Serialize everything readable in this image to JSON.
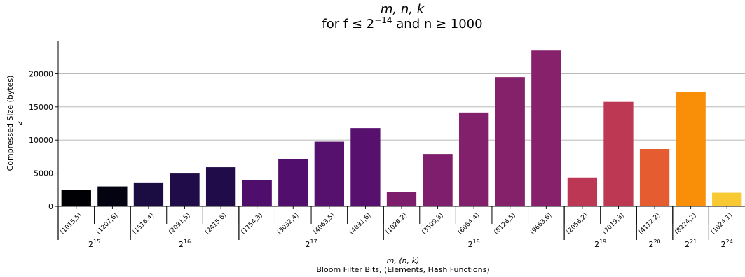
{
  "chart_data": {
    "type": "bar",
    "title_line1": "m, n, k",
    "title_line2_prefix": "for f ≤ 2",
    "title_line2_exp": "−14",
    "title_line2_suffix": " and n ≥ 1000",
    "xlabel_line1": "m, (n, k)",
    "xlabel_line2": "Bloom Filter Bits, (Elements, Hash Functions)",
    "ylabel_line1": "Compressed Size (bytes)",
    "ylabel_line2": "z",
    "ylim": [
      0,
      25000
    ],
    "yticks": [
      "0",
      "5000",
      "10000",
      "15000",
      "20000"
    ],
    "grid": "horizontal",
    "categories": [
      "(1015,5)",
      "(1207,6)",
      "(1516,4)",
      "(2031,5)",
      "(2415,6)",
      "(1754,3)",
      "(3032,4)",
      "(4063,5)",
      "(4831,6)",
      "(1028,2)",
      "(3509,3)",
      "(6064,4)",
      "(8126,5)",
      "(9663,6)",
      "(2056,2)",
      "(7019,3)",
      "(4112,2)",
      "(8224,2)",
      "(1024,1)"
    ],
    "values": [
      2500,
      3000,
      3600,
      4950,
      5900,
      3950,
      7100,
      9750,
      11800,
      2200,
      7900,
      14150,
      19500,
      23500,
      4350,
      15750,
      8650,
      17300,
      2050
    ],
    "colors": [
      "#000004",
      "#040312",
      "#1b0c41",
      "#1f0c48",
      "#210c4a",
      "#4f0d6c",
      "#520e6d",
      "#56106e",
      "#57106e",
      "#7d1e6d",
      "#7f1e6c",
      "#83206b",
      "#85216b",
      "#87216b",
      "#bc3754",
      "#bd3853",
      "#e55c30",
      "#f98e09",
      "#f8c932"
    ],
    "groups": [
      {
        "base": "2",
        "exp": "15",
        "start": 0,
        "end": 1
      },
      {
        "base": "2",
        "exp": "16",
        "start": 2,
        "end": 4
      },
      {
        "base": "2",
        "exp": "17",
        "start": 5,
        "end": 8
      },
      {
        "base": "2",
        "exp": "18",
        "start": 9,
        "end": 13
      },
      {
        "base": "2",
        "exp": "19",
        "start": 14,
        "end": 15
      },
      {
        "base": "2",
        "exp": "20",
        "start": 16,
        "end": 16
      },
      {
        "base": "2",
        "exp": "21",
        "start": 17,
        "end": 17
      },
      {
        "base": "2",
        "exp": "24",
        "start": 18,
        "end": 18
      }
    ]
  }
}
